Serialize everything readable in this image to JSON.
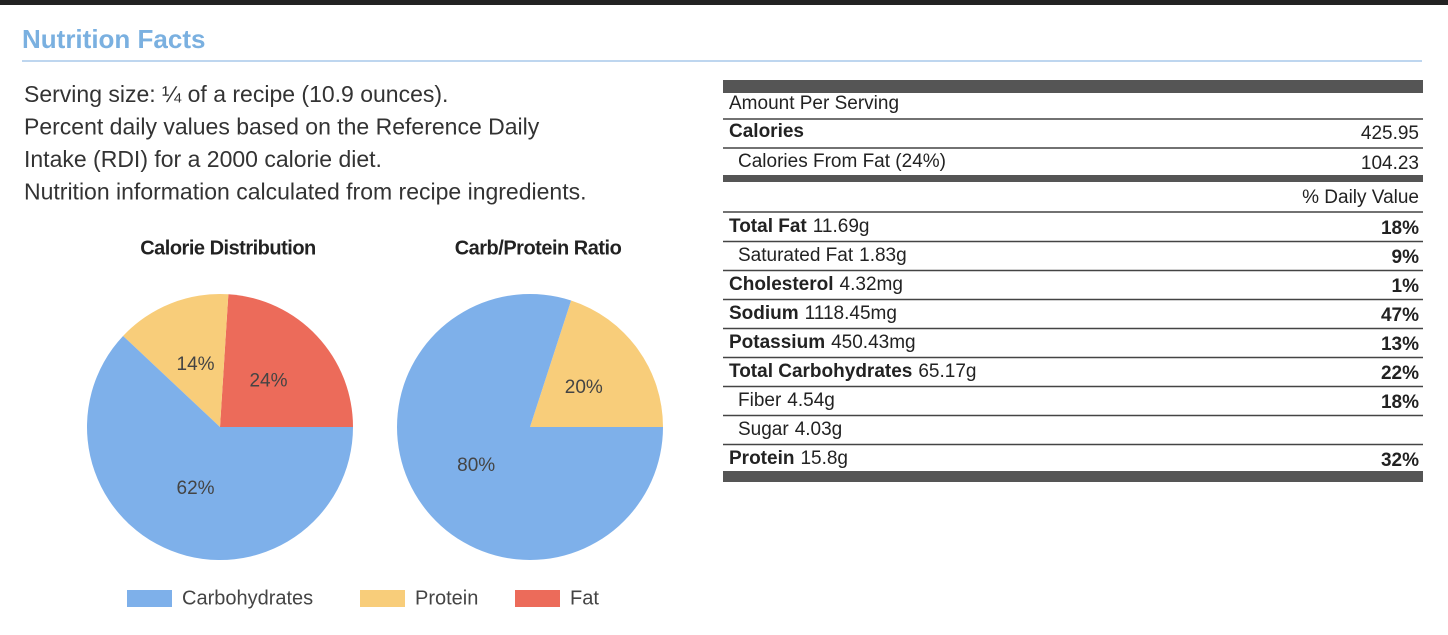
{
  "header": {
    "title": "Nutrition Facts"
  },
  "intro": [
    "Serving size: ¼ of a recipe (10.9 ounces).",
    "Percent daily values based on the Reference Daily",
    "Intake (RDI) for a 2000 calorie diet.",
    "Nutrition information calculated from recipe ingredients."
  ],
  "chart_data": [
    {
      "type": "pie",
      "title": "Calorie Distribution",
      "values": [
        24,
        14,
        62
      ],
      "value_labels": [
        "24%",
        "14%",
        "62%"
      ],
      "colors": [
        "#ec6b5a",
        "#f8cd7a",
        "#7eb0ea"
      ]
    },
    {
      "type": "pie",
      "title": "Carb/Protein Ratio",
      "values": [
        20,
        80
      ],
      "value_labels": [
        "20%",
        "80%"
      ],
      "colors": [
        "#f8cd7a",
        "#7eb0ea"
      ]
    }
  ],
  "legend": [
    {
      "name": "Carbohydrates",
      "color": "#7eb0ea"
    },
    {
      "name": "Protein",
      "color": "#f8cd7a"
    },
    {
      "name": "Fat",
      "color": "#ec6b5a"
    }
  ],
  "table": {
    "heading": "Amount Per Serving",
    "calories": {
      "label": "Calories",
      "value": "425.95"
    },
    "calories_from_fat": {
      "label": "Calories From Fat (24%)",
      "value": "104.23"
    },
    "dv_heading": "% Daily Value",
    "rows": [
      {
        "name": "Total Fat",
        "amount": "11.69g",
        "dv": "18%",
        "bold": true
      },
      {
        "name": "Saturated Fat",
        "amount": "1.83g",
        "dv": "9%",
        "bold": false
      },
      {
        "name": "Cholesterol",
        "amount": "4.32mg",
        "dv": "1%",
        "bold": true
      },
      {
        "name": "Sodium",
        "amount": "1118.45mg",
        "dv": "47%",
        "bold": true
      },
      {
        "name": "Potassium",
        "amount": "450.43mg",
        "dv": "13%",
        "bold": true
      },
      {
        "name": "Total Carbohydrates",
        "amount": "65.17g",
        "dv": "22%",
        "bold": true
      },
      {
        "name": "Fiber",
        "amount": "4.54g",
        "dv": "18%",
        "bold": false
      },
      {
        "name": "Sugar",
        "amount": "4.03g",
        "bold": false
      },
      {
        "name": "Protein",
        "amount": "15.8g",
        "dv": "32%",
        "bold": true
      }
    ]
  }
}
